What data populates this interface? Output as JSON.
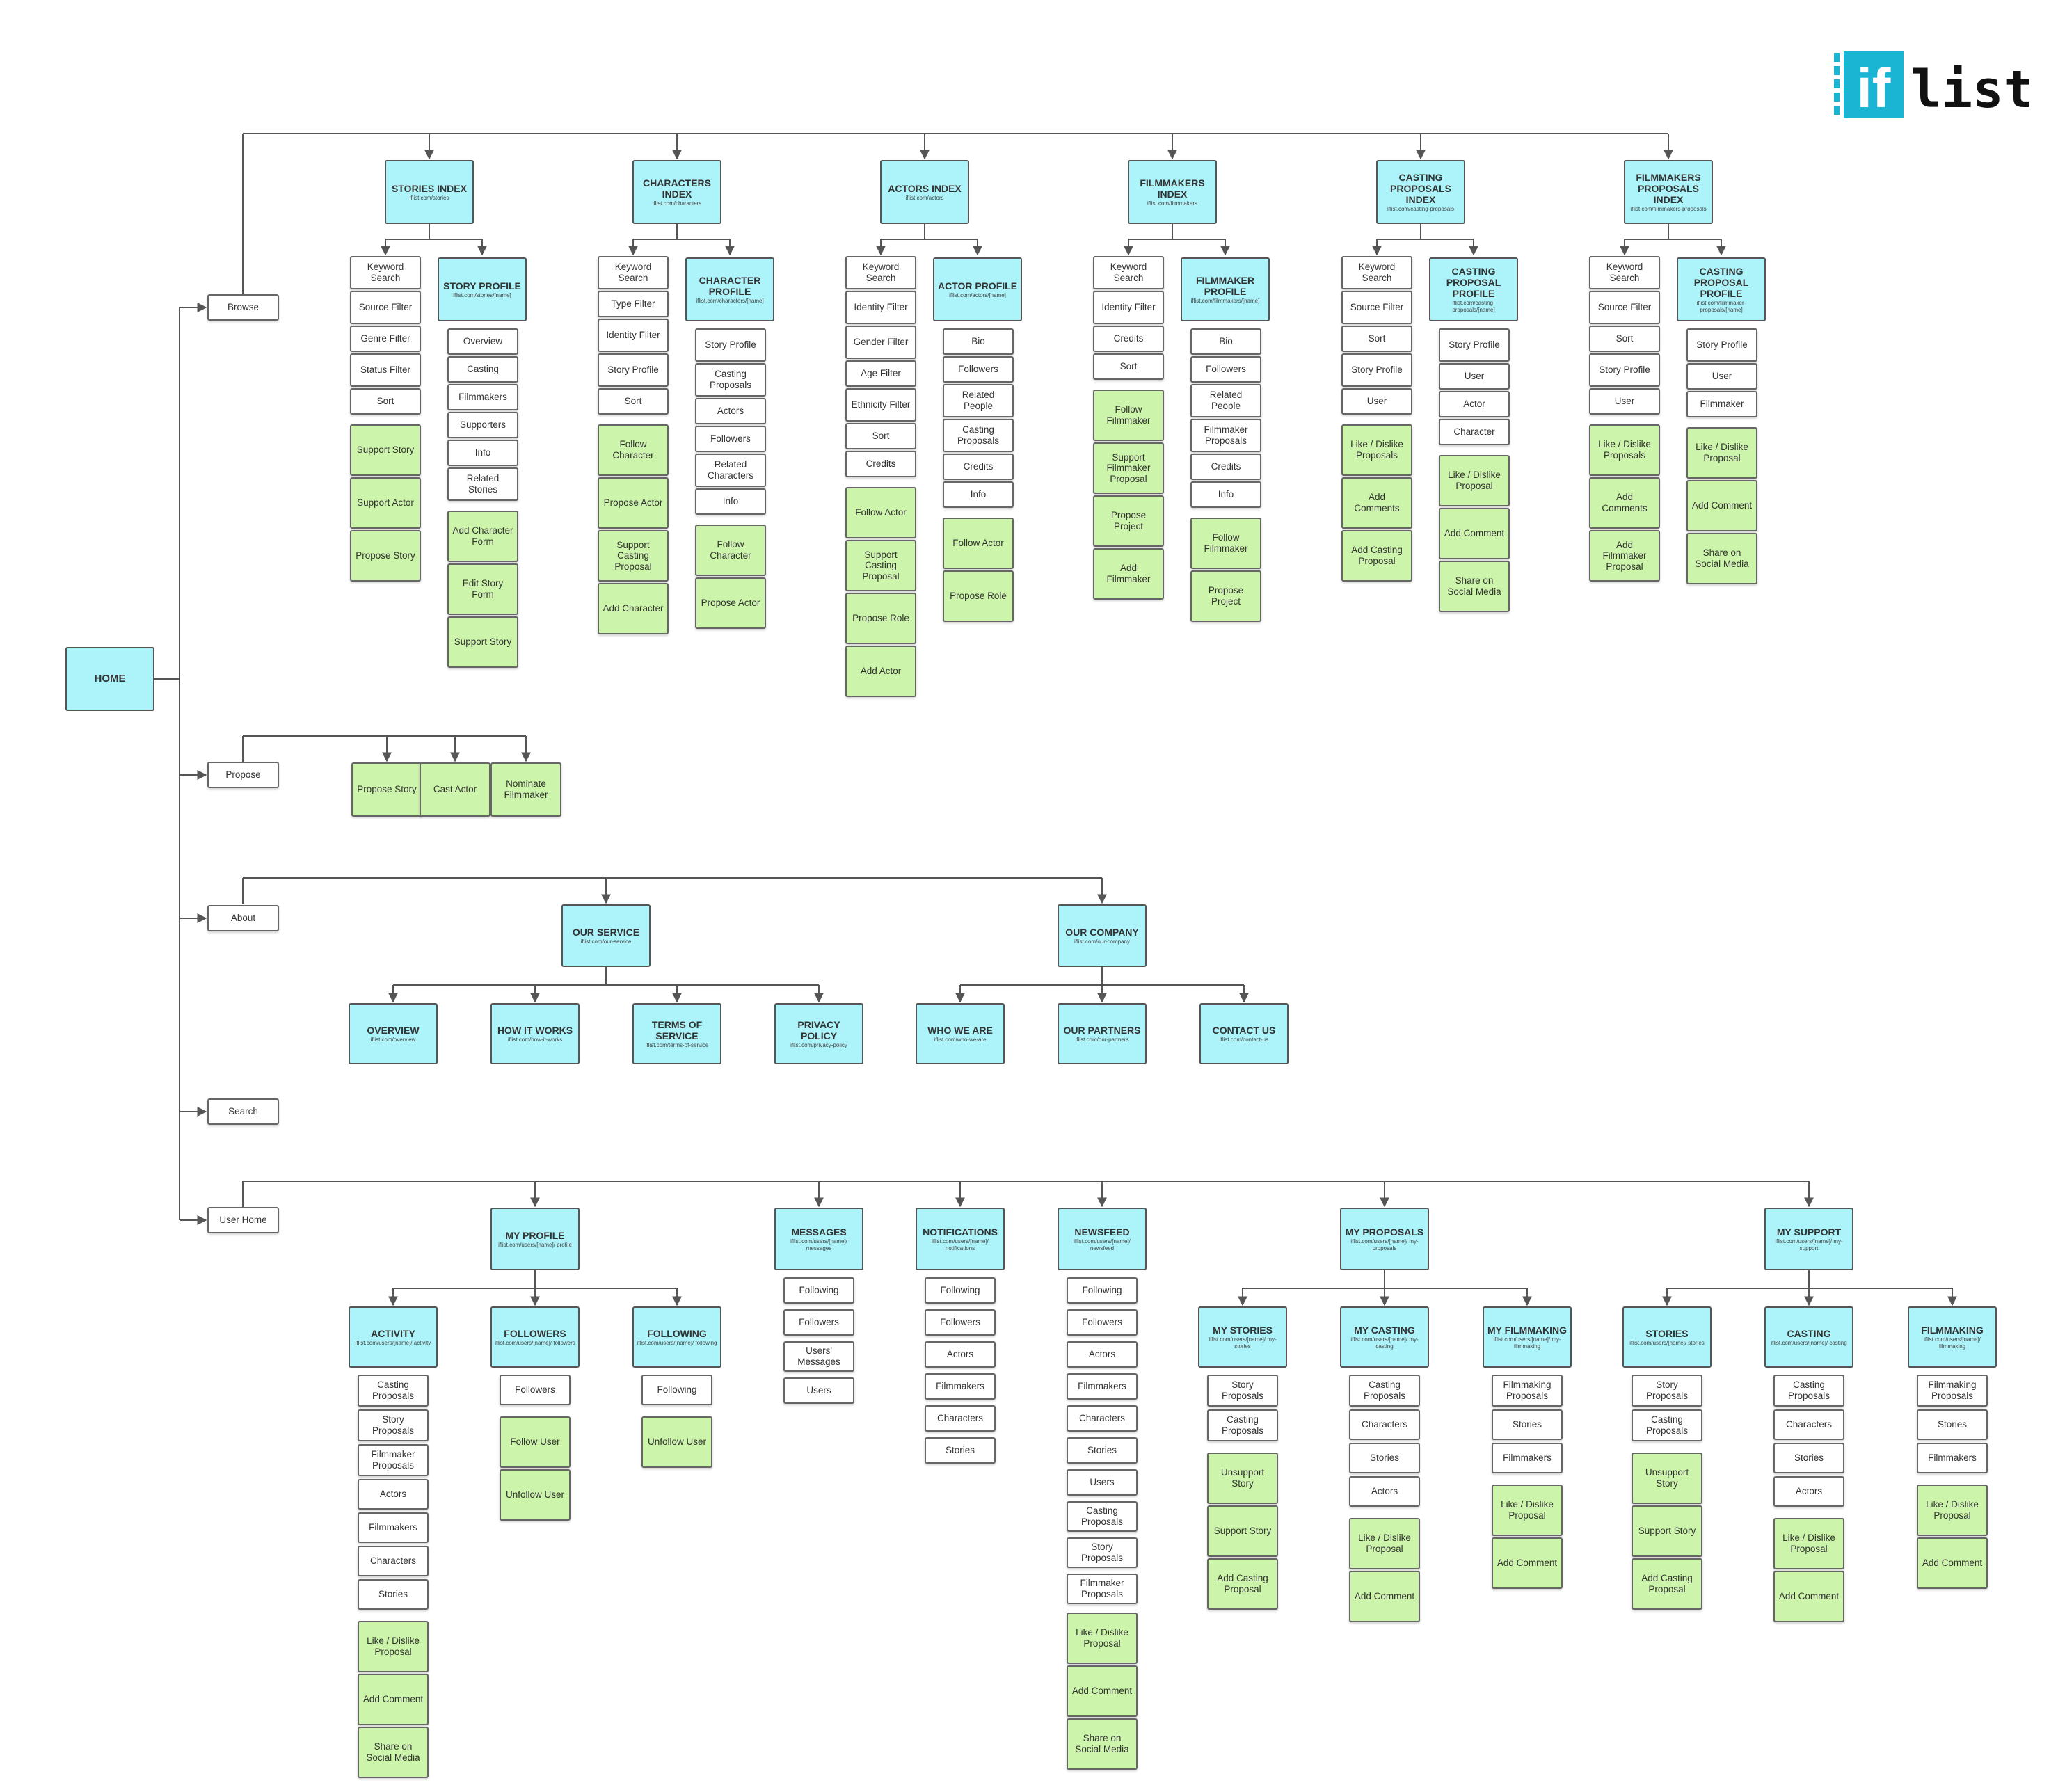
{
  "logo": {
    "mark": "if",
    "word": "list"
  },
  "colors": {
    "page": "#acf3fa",
    "action": "#ccf4aa",
    "filter": "#ffffff",
    "line": "#555555",
    "logo": "#1bb5d4"
  },
  "home": {
    "name": "HOME"
  },
  "nav": [
    "Browse",
    "Propose",
    "About",
    "Search",
    "User Home"
  ],
  "browse": [
    {
      "title": "STORIES INDEX",
      "url": "iflist.com/stories",
      "filters": [
        "Keyword Search",
        "Source Filter",
        "Genre Filter",
        "Status Filter",
        "Sort"
      ],
      "actions": [
        "Support Story",
        "Support Actor",
        "Propose Story"
      ],
      "profile": {
        "title": "STORY PROFILE",
        "url": "iflist.com/stories/[name]",
        "items": [
          "Overview",
          "Casting",
          "Filmmakers",
          "Supporters",
          "Info",
          "Related Stories"
        ],
        "actions": [
          "Add Character Form",
          "Edit Story Form",
          "Support Story"
        ]
      }
    },
    {
      "title": "CHARACTERS INDEX",
      "url": "iflist.com/characters",
      "filters": [
        "Keyword Search",
        "Type Filter",
        "Identity Filter",
        "Story Profile",
        "Sort"
      ],
      "actions": [
        "Follow Character",
        "Propose Actor",
        "Support Casting Proposal",
        "Add Character"
      ],
      "profile": {
        "title": "CHARACTER PROFILE",
        "url": "iflist.com/characters/[name]",
        "items": [
          "Story Profile",
          "Casting Proposals",
          "Actors",
          "Followers",
          "Related Characters",
          "Info"
        ],
        "actions": [
          "Follow Character",
          "Propose Actor"
        ]
      }
    },
    {
      "title": "ACTORS INDEX",
      "url": "iflist.com/actors",
      "filters": [
        "Keyword Search",
        "Identity Filter",
        "Gender Filter",
        "Age Filter",
        "Ethnicity Filter",
        "Sort",
        "Credits"
      ],
      "actions": [
        "Follow Actor",
        "Support Casting Proposal",
        "Propose Role",
        "Add Actor"
      ],
      "profile": {
        "title": "ACTOR PROFILE",
        "url": "iflist.com/actors/[name]",
        "items": [
          "Bio",
          "Followers",
          "Related People",
          "Casting Proposals",
          "Credits",
          "Info"
        ],
        "actions": [
          "Follow Actor",
          "Propose Role"
        ]
      }
    },
    {
      "title": "FILMMAKERS INDEX",
      "url": "iflist.com/filmmakers",
      "filters": [
        "Keyword Search",
        "Identity Filter",
        "Credits",
        "Sort"
      ],
      "actions": [
        "Follow Filmmaker",
        "Support Filmmaker Proposal",
        "Propose Project",
        "Add Filmmaker"
      ],
      "profile": {
        "title": "FILMMAKER PROFILE",
        "url": "iflist.com/filmmakers/[name]",
        "items": [
          "Bio",
          "Followers",
          "Related People",
          "Filmmaker Proposals",
          "Credits",
          "Info"
        ],
        "actions": [
          "Follow Filmmaker",
          "Propose Project"
        ]
      }
    },
    {
      "title": "CASTING PROPOSALS INDEX",
      "url": "iflist.com/casting-proposals",
      "filters": [
        "Keyword Search",
        "Source Filter",
        "Sort",
        "Story Profile",
        "User"
      ],
      "actions": [
        "Like / Dislike Proposals",
        "Add Comments",
        "Add Casting Proposal"
      ],
      "profile": {
        "title": "CASTING PROPOSAL PROFILE",
        "url": "iflist.com/casting-proposals/[name]",
        "items": [
          "Story Profile",
          "User",
          "Actor",
          "Character"
        ],
        "actions": [
          "Like / Dislike Proposal",
          "Add Comment",
          "Share on Social Media"
        ]
      }
    },
    {
      "title": "FILMMAKERS PROPOSALS INDEX",
      "url": "iflist.com/filmmakers-proposals",
      "filters": [
        "Keyword Search",
        "Source Filter",
        "Sort",
        "Story Profile",
        "User"
      ],
      "actions": [
        "Like / Dislike Proposals",
        "Add Comments",
        "Add Filmmaker Proposal"
      ],
      "profile": {
        "title": "CASTING PROPOSAL PROFILE",
        "url": "iflist.com/filmmaker-proposals/[name]",
        "items": [
          "Story Profile",
          "User",
          "Filmmaker"
        ],
        "actions": [
          "Like / Dislike Proposal",
          "Add Comment",
          "Share on Social Media"
        ]
      }
    }
  ],
  "propose": [
    "Propose Story",
    "Cast Actor",
    "Nominate Filmmaker"
  ],
  "about": [
    {
      "title": "OUR SERVICE",
      "url": "iflist.com/our-service",
      "children": [
        {
          "title": "OVERVIEW",
          "url": "iflist.com/overview"
        },
        {
          "title": "HOW IT WORKS",
          "url": "iflist.com/how-it-works"
        },
        {
          "title": "TERMS OF SERVICE",
          "url": "iflist.com/terms-of-service"
        },
        {
          "title": "PRIVACY POLICY",
          "url": "iflist.com/privacy-policy"
        }
      ]
    },
    {
      "title": "OUR COMPANY",
      "url": "iflist.com/our-company",
      "children": [
        {
          "title": "WHO WE ARE",
          "url": "iflist.com/who-we-are"
        },
        {
          "title": "OUR PARTNERS",
          "url": "iflist.com/our-partners"
        },
        {
          "title": "CONTACT US",
          "url": "iflist.com/contact-us"
        }
      ]
    }
  ],
  "user": {
    "my_profile": {
      "title": "MY PROFILE",
      "url": "iflist.com/users/[name]/ profile",
      "children": [
        {
          "title": "ACTIVITY",
          "url": "iflist.com/users/[name]/ activity",
          "items": [
            "Casting Proposals",
            "Story Proposals",
            "Filmmaker Proposals",
            "Actors",
            "Filmmakers",
            "Characters",
            "Stories"
          ],
          "actions": [
            "Like / Dislike Proposal",
            "Add Comment",
            "Share on Social Media"
          ]
        },
        {
          "title": "FOLLOWERS",
          "url": "iflist.com/users/[name]/ followers",
          "items": [
            "Followers"
          ],
          "actions": [
            "Follow User",
            "Unfollow User"
          ]
        },
        {
          "title": "FOLLOWING",
          "url": "iflist.com/users/[name]/ following",
          "items": [
            "Following"
          ],
          "actions": [
            "Unfollow User"
          ]
        }
      ]
    },
    "messages": {
      "title": "MESSAGES",
      "url": "iflist.com/users/[name]/ messages",
      "items": [
        "Following",
        "Followers",
        "Users' Messages",
        "Users"
      ]
    },
    "notifications": {
      "title": "NOTIFICATIONS",
      "url": "iflist.com/users/[name]/ notifications",
      "items": [
        "Following",
        "Followers",
        "Actors",
        "Filmmakers",
        "Characters",
        "Stories"
      ]
    },
    "newsfeed": {
      "title": "NEWSFEED",
      "url": "iflist.com/users/[name]/ newsfeed",
      "items": [
        "Following",
        "Followers",
        "Actors",
        "Filmmakers",
        "Characters",
        "Stories",
        "Users",
        "Casting Proposals",
        "Story Proposals",
        "Filmmaker Proposals"
      ],
      "actions": [
        "Like / Dislike Proposal",
        "Add Comment",
        "Share on Social Media"
      ]
    },
    "my_proposals": {
      "title": "MY PROPOSALS",
      "url": "iflist.com/users/[name]/ my-proposals",
      "children": [
        {
          "title": "MY STORIES",
          "url": "iflist.com/users/[name]/ my-stories",
          "items": [
            "Story Proposals",
            "Casting Proposals"
          ],
          "actions": [
            "Unsupport Story",
            "Support Story",
            "Add Casting Proposal"
          ]
        },
        {
          "title": "MY CASTING",
          "url": "iflist.com/users/[name]/ my-casting",
          "items": [
            "Casting Proposals",
            "Characters",
            "Stories",
            "Actors"
          ],
          "actions": [
            "Like / Dislike Proposal",
            "Add Comment"
          ]
        },
        {
          "title": "MY FILMMAKING",
          "url": "iflist.com/users/[name]/ my-filmmaking",
          "items": [
            "Filmmaking Proposals",
            "Stories",
            "Filmmakers"
          ],
          "actions": [
            "Like / Dislike Proposal",
            "Add Comment"
          ]
        }
      ]
    },
    "my_support": {
      "title": "MY SUPPORT",
      "url": "iflist.com/users/[name]/ my-support",
      "children": [
        {
          "title": "STORIES",
          "url": "iflist.com/users/[name]/ stories",
          "items": [
            "Story Proposals",
            "Casting Proposals"
          ],
          "actions": [
            "Unsupport Story",
            "Support Story",
            "Add Casting Proposal"
          ]
        },
        {
          "title": "CASTING",
          "url": "iflist.com/users/[name]/ casting",
          "items": [
            "Casting Proposals",
            "Characters",
            "Stories",
            "Actors"
          ],
          "actions": [
            "Like / Dislike Proposal",
            "Add Comment"
          ]
        },
        {
          "title": "FILMMAKING",
          "url": "iflist.com/users/[name]/ filmmaking",
          "items": [
            "Filmmaking Proposals",
            "Stories",
            "Filmmakers"
          ],
          "actions": [
            "Like / Dislike Proposal",
            "Add Comment"
          ]
        }
      ]
    }
  }
}
